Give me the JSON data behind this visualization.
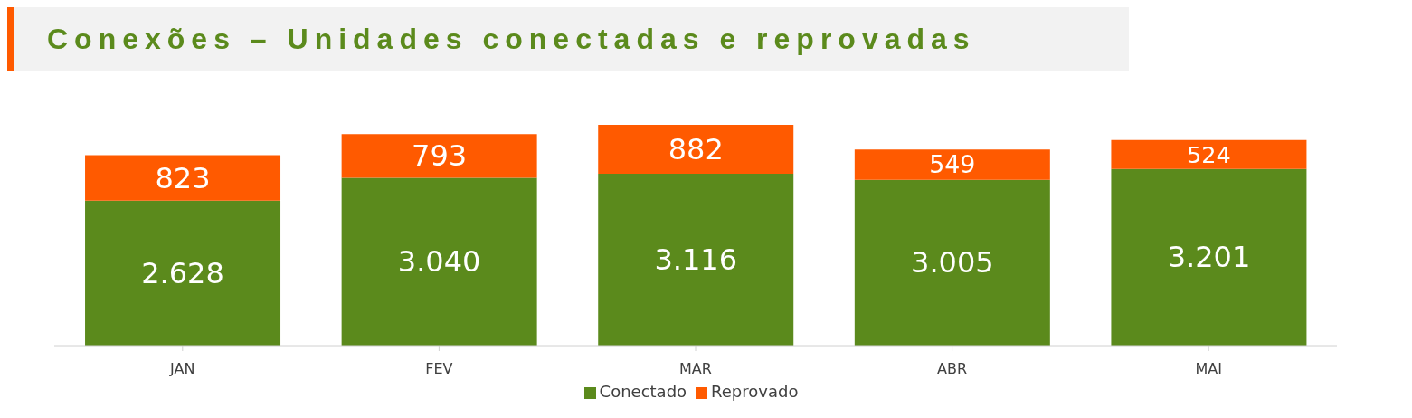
{
  "chart_data": {
    "type": "bar",
    "title": "Conexões – Unidades conectadas e reprovadas",
    "categories": [
      "JAN",
      "FEV",
      "MAR",
      "ABR",
      "MAI"
    ],
    "stacked": true,
    "legend": "bottom",
    "grid": false,
    "series": [
      {
        "name": "Conectado",
        "color": "#5b8a1c",
        "values": [
          2628,
          3040,
          3116,
          3005,
          3201
        ],
        "value_labels": [
          "2.628",
          "3.040",
          "3.116",
          "3.005",
          "3.201"
        ]
      },
      {
        "name": "Reprovado",
        "color": "#ff5a00",
        "values": [
          823,
          793,
          882,
          549,
          524
        ],
        "value_labels": [
          "823",
          "793",
          "882",
          "549",
          "524"
        ]
      }
    ]
  }
}
